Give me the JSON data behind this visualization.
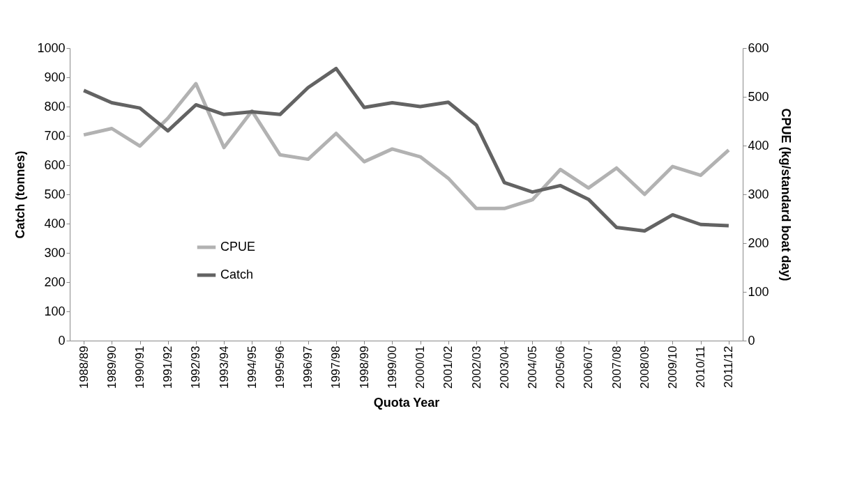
{
  "chart_data": {
    "type": "line",
    "xlabel": "Quota Year",
    "ylabel": "Catch (tonnes)",
    "y2label": "CPUE (kg/standard boat day)",
    "categories": [
      "1988/89",
      "1989/90",
      "1990/91",
      "1991/92",
      "1992/93",
      "1993/94",
      "1994/95",
      "1995/96",
      "1996/97",
      "1997/98",
      "1998/99",
      "1999/00",
      "2000/01",
      "2001/02",
      "2002/03",
      "2003/04",
      "2004/05",
      "2005/06",
      "2006/07",
      "2007/08",
      "2008/09",
      "2009/10",
      "2010/11",
      "2011/12"
    ],
    "series": [
      {
        "name": "CPUE",
        "color": "#b2b2b2",
        "axis": "y2",
        "values": [
          422,
          435,
          399,
          456,
          527,
          396,
          471,
          381,
          372,
          425,
          367,
          393,
          377,
          333,
          271,
          271,
          289,
          351,
          313,
          354,
          300,
          357,
          339,
          391
        ]
      },
      {
        "name": "Catch",
        "color": "#636363",
        "axis": "y",
        "values": [
          855,
          813,
          795,
          717,
          806,
          773,
          782,
          773,
          865,
          930,
          797,
          813,
          800,
          815,
          737,
          540,
          508,
          530,
          483,
          387,
          375,
          430,
          397,
          393
        ]
      }
    ],
    "ylim": [
      0,
      1000
    ],
    "yticks": [
      0,
      100,
      200,
      300,
      400,
      500,
      600,
      700,
      800,
      900,
      1000
    ],
    "y2lim": [
      0,
      600
    ],
    "y2ticks": [
      0,
      100,
      200,
      300,
      400,
      500,
      600
    ],
    "grid": false,
    "legend": "bottom left",
    "line_style": "solid",
    "marker": "none"
  }
}
